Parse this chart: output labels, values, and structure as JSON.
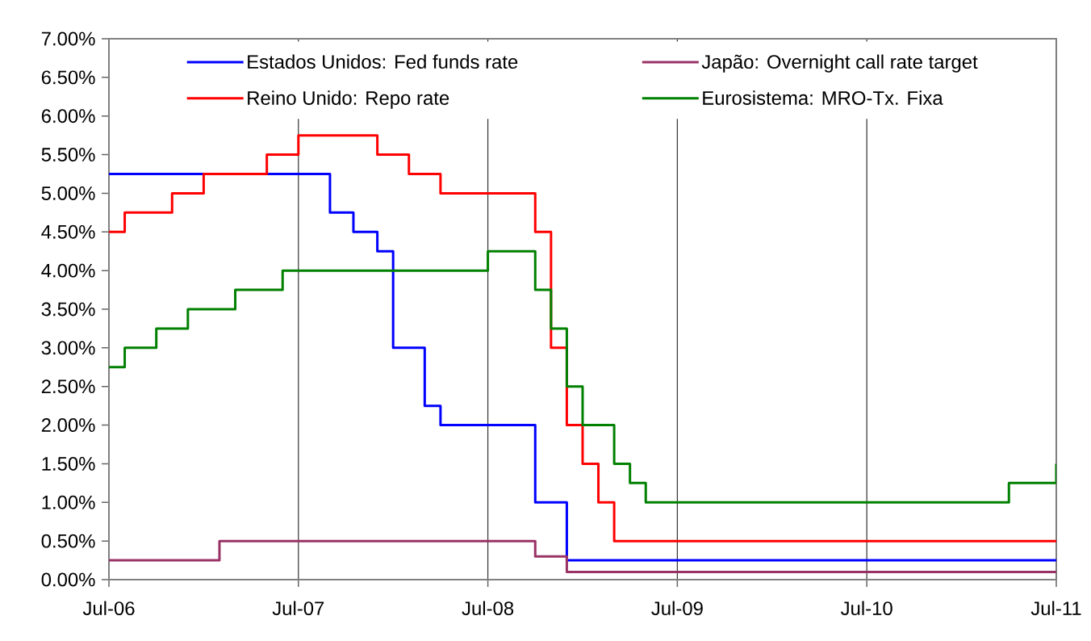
{
  "chart_data": {
    "type": "step",
    "series": [
      {
        "name": "Estados Unidos: Fed funds rate",
        "color": "#0000ff",
        "x": [
          "2006-07",
          "2007-09",
          "2007-10-16",
          "2007-12",
          "2008-01",
          "2008-03",
          "2008-04",
          "2008-10",
          "2008-12",
          "2011-07"
        ],
        "values": [
          5.25,
          4.75,
          4.5,
          4.25,
          3.0,
          2.25,
          2.0,
          1.0,
          0.25,
          0.25
        ]
      },
      {
        "name": "Japão: Overnight call rate target",
        "color": "#993366",
        "x": [
          "2006-07",
          "2007-02",
          "2008-10",
          "2008-12",
          "2011-07"
        ],
        "values": [
          0.25,
          0.5,
          0.3,
          0.1,
          0.1
        ]
      },
      {
        "name": "Reino Unido: Repo rate",
        "color": "#ff0000",
        "x": [
          "2006-07",
          "2006-08",
          "2006-11",
          "2007-01",
          "2007-05",
          "2007-07",
          "2007-12",
          "2008-02",
          "2008-04",
          "2008-10",
          "2008-11",
          "2008-12",
          "2009-01",
          "2009-02",
          "2009-03",
          "2011-07"
        ],
        "values": [
          4.5,
          4.75,
          5.0,
          5.25,
          5.5,
          5.75,
          5.5,
          5.25,
          5.0,
          4.5,
          3.0,
          2.0,
          1.5,
          1.0,
          0.5,
          0.5
        ]
      },
      {
        "name": "Eurosistema: MRO-Tx. Fixa",
        "color": "#008000",
        "x": [
          "2006-07",
          "2006-08",
          "2006-10",
          "2006-12",
          "2007-03",
          "2007-06",
          "2008-07",
          "2008-10",
          "2008-11",
          "2008-12",
          "2009-01",
          "2009-03",
          "2009-04",
          "2009-05",
          "2011-04",
          "2011-07"
        ],
        "values": [
          2.75,
          3.0,
          3.25,
          3.5,
          3.75,
          4.0,
          4.25,
          3.75,
          3.25,
          2.5,
          2.0,
          1.5,
          1.25,
          1.0,
          1.25,
          1.5
        ]
      }
    ],
    "xlim": [
      "2006-07",
      "2011-07"
    ],
    "xticks": [
      {
        "value": "2006-07",
        "label": "Jul-06"
      },
      {
        "value": "2007-07",
        "label": "Jul-07"
      },
      {
        "value": "2008-07",
        "label": "Jul-08"
      },
      {
        "value": "2009-07",
        "label": "Jul-09"
      },
      {
        "value": "2010-07",
        "label": "Jul-10"
      },
      {
        "value": "2011-07",
        "label": "Jul-11"
      }
    ],
    "ylim": [
      0,
      7
    ],
    "yticks": [
      {
        "value": 0,
        "label": "0.00%"
      },
      {
        "value": 0.5,
        "label": "0.50%"
      },
      {
        "value": 1,
        "label": "1.00%"
      },
      {
        "value": 1.5,
        "label": "1.50%"
      },
      {
        "value": 2,
        "label": "2.00%"
      },
      {
        "value": 2.5,
        "label": "2.50%"
      },
      {
        "value": 3,
        "label": "3.00%"
      },
      {
        "value": 3.5,
        "label": "3.50%"
      },
      {
        "value": 4,
        "label": "4.00%"
      },
      {
        "value": 4.5,
        "label": "4.50%"
      },
      {
        "value": 5,
        "label": "5.00%"
      },
      {
        "value": 5.5,
        "label": "5.50%"
      },
      {
        "value": 6,
        "label": "6.00%"
      },
      {
        "value": 6.5,
        "label": "6.50%"
      },
      {
        "value": 7,
        "label": "7.00%"
      }
    ],
    "grid": "x",
    "legend": "top",
    "line_style": "solid"
  }
}
